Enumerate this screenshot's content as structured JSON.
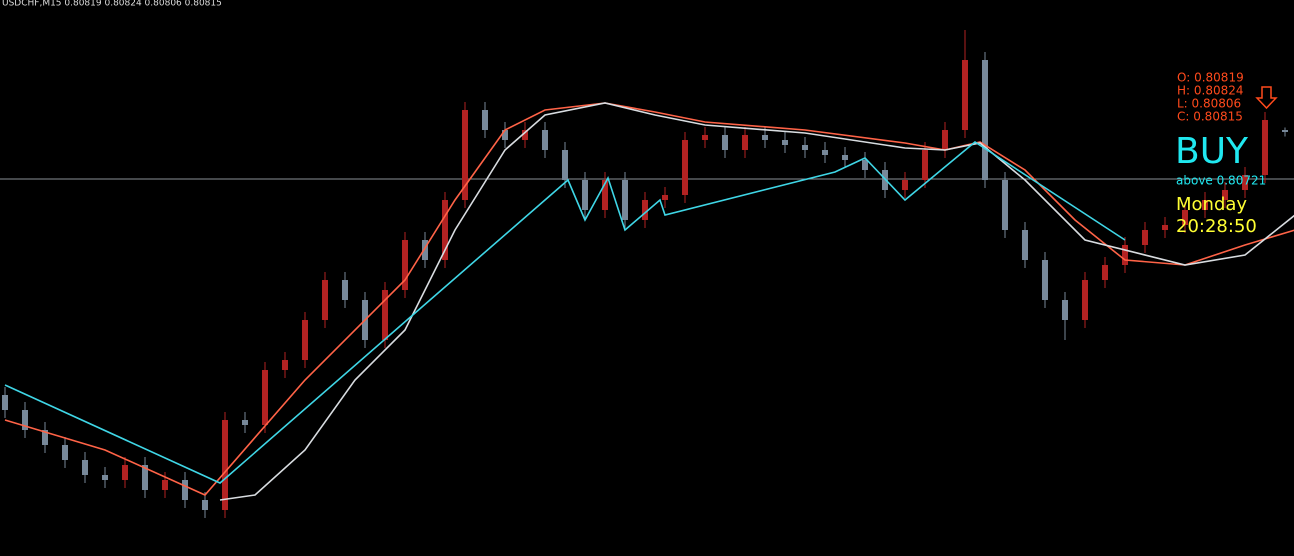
{
  "chart_data": {
    "type": "candlestick",
    "header": "USDCHF,M15  0.80819 0.80824 0.80806 0.80815",
    "ylim": [
      0.79967,
      0.81079
    ],
    "bull_color": "#b22222",
    "bear_color": "#778899",
    "candles": [
      [
        0.80289,
        0.80305,
        0.80243,
        0.80259
      ],
      [
        0.80259,
        0.80275,
        0.80203,
        0.80219
      ],
      [
        0.80219,
        0.80235,
        0.80173,
        0.80189
      ],
      [
        0.80189,
        0.80205,
        0.80143,
        0.80159
      ],
      [
        0.80159,
        0.80175,
        0.80113,
        0.80129
      ],
      [
        0.80129,
        0.80145,
        0.80103,
        0.80119
      ],
      [
        0.80119,
        0.80165,
        0.80103,
        0.80149
      ],
      [
        0.80149,
        0.80165,
        0.80083,
        0.80099
      ],
      [
        0.80099,
        0.80135,
        0.80083,
        0.80119
      ],
      [
        0.80119,
        0.80135,
        0.80063,
        0.80079
      ],
      [
        0.80079,
        0.80095,
        0.80043,
        0.80059
      ],
      [
        0.80059,
        0.80255,
        0.80043,
        0.80239
      ],
      [
        0.80239,
        0.80255,
        0.80213,
        0.80229
      ],
      [
        0.80229,
        0.80355,
        0.80213,
        0.80339
      ],
      [
        0.80339,
        0.80375,
        0.80323,
        0.80359
      ],
      [
        0.80359,
        0.80455,
        0.80343,
        0.80439
      ],
      [
        0.80439,
        0.80535,
        0.80423,
        0.80519
      ],
      [
        0.80519,
        0.80535,
        0.80463,
        0.80479
      ],
      [
        0.80479,
        0.80495,
        0.80383,
        0.80399
      ],
      [
        0.80399,
        0.80515,
        0.80383,
        0.80499
      ],
      [
        0.80499,
        0.80615,
        0.80483,
        0.80599
      ],
      [
        0.80599,
        0.80615,
        0.80543,
        0.80559
      ],
      [
        0.80559,
        0.80695,
        0.80543,
        0.80679
      ],
      [
        0.80679,
        0.80875,
        0.80663,
        0.80859
      ],
      [
        0.80859,
        0.80875,
        0.80803,
        0.80819
      ],
      [
        0.80819,
        0.80835,
        0.80783,
        0.80799
      ],
      [
        0.80799,
        0.80835,
        0.80783,
        0.80819
      ],
      [
        0.80819,
        0.80835,
        0.80763,
        0.80779
      ],
      [
        0.80779,
        0.80795,
        0.80703,
        0.80719
      ],
      [
        0.80719,
        0.80735,
        0.80643,
        0.80659
      ],
      [
        0.80659,
        0.80735,
        0.80643,
        0.80719
      ],
      [
        0.80719,
        0.80735,
        0.80623,
        0.80639
      ],
      [
        0.80639,
        0.80695,
        0.80623,
        0.80679
      ],
      [
        0.80679,
        0.80705,
        0.80663,
        0.80689
      ],
      [
        0.80689,
        0.80815,
        0.80673,
        0.80799
      ],
      [
        0.80799,
        0.80825,
        0.80783,
        0.80809
      ],
      [
        0.80809,
        0.80825,
        0.80763,
        0.80779
      ],
      [
        0.80779,
        0.80825,
        0.80763,
        0.80809
      ],
      [
        0.80809,
        0.80825,
        0.80783,
        0.80799
      ],
      [
        0.80799,
        0.80815,
        0.80773,
        0.80789
      ],
      [
        0.80789,
        0.80805,
        0.80763,
        0.80779
      ],
      [
        0.80779,
        0.80795,
        0.80753,
        0.80769
      ],
      [
        0.80769,
        0.80785,
        0.80743,
        0.80759
      ],
      [
        0.80759,
        0.80775,
        0.80723,
        0.80739
      ],
      [
        0.80739,
        0.80755,
        0.80683,
        0.80699
      ],
      [
        0.80699,
        0.80735,
        0.80683,
        0.80719
      ],
      [
        0.80719,
        0.80795,
        0.80703,
        0.80779
      ],
      [
        0.80779,
        0.80835,
        0.80763,
        0.80819
      ],
      [
        0.80819,
        0.81019,
        0.80803,
        0.80959
      ],
      [
        0.80959,
        0.80975,
        0.80703,
        0.80719
      ],
      [
        0.80719,
        0.80735,
        0.80603,
        0.80619
      ],
      [
        0.80619,
        0.80635,
        0.80543,
        0.80559
      ],
      [
        0.80559,
        0.80575,
        0.80463,
        0.80479
      ],
      [
        0.80479,
        0.80495,
        0.80399,
        0.80439
      ],
      [
        0.80439,
        0.80535,
        0.80423,
        0.80519
      ],
      [
        0.80519,
        0.80565,
        0.80503,
        0.80549
      ],
      [
        0.80549,
        0.80605,
        0.80533,
        0.80589
      ],
      [
        0.80589,
        0.80635,
        0.80573,
        0.80619
      ],
      [
        0.80619,
        0.80645,
        0.80603,
        0.80629
      ],
      [
        0.80629,
        0.80675,
        0.80613,
        0.80659
      ],
      [
        0.80659,
        0.80695,
        0.80643,
        0.80679
      ],
      [
        0.80679,
        0.80715,
        0.80663,
        0.80699
      ],
      [
        0.80699,
        0.80745,
        0.80683,
        0.80729
      ],
      [
        0.80729,
        0.80855,
        0.80713,
        0.80839
      ],
      [
        0.80819,
        0.80824,
        0.80806,
        0.80815
      ]
    ],
    "lines": [
      {
        "color": "#ff6347",
        "x": [
          0,
          5,
          10,
          15,
          20,
          22.5,
          25,
          27,
          30,
          32.5,
          35,
          40,
          45,
          47,
          48.75,
          51,
          53.5,
          56,
          59,
          62,
          64.5
        ],
        "values": [
          0.80239,
          0.80179,
          0.80089,
          0.80319,
          0.80519,
          0.80679,
          0.80819,
          0.80859,
          0.80873,
          0.80855,
          0.80835,
          0.80819,
          0.80793,
          0.80779,
          0.80795,
          0.80739,
          0.80639,
          0.80559,
          0.80549,
          0.80589,
          0.80619
        ]
      },
      {
        "color": "#d8dce0",
        "x": [
          10.75,
          12.5,
          15,
          17.5,
          20,
          22.5,
          25,
          27,
          30,
          32.5,
          35,
          40,
          45,
          47,
          48.75,
          51,
          54,
          59,
          62,
          64.5
        ],
        "values": [
          0.80079,
          0.80089,
          0.80179,
          0.80319,
          0.80419,
          0.80619,
          0.80779,
          0.80849,
          0.80873,
          0.80849,
          0.80829,
          0.80813,
          0.80783,
          0.80779,
          0.80793,
          0.80719,
          0.80599,
          0.80549,
          0.80569,
          0.80649
        ]
      },
      {
        "color": "#3fd6e6",
        "x": [
          0,
          10.75,
          21.25,
          28.15,
          29,
          30.15,
          31,
          32.75,
          33,
          41.5,
          43,
          45,
          48.5,
          56
        ],
        "values": [
          0.80309,
          0.80113,
          0.80479,
          0.80719,
          0.80639,
          0.80723,
          0.80619,
          0.80679,
          0.80649,
          0.80735,
          0.80763,
          0.80679,
          0.80795,
          0.80599
        ]
      }
    ],
    "hline": 0.80721,
    "hline_color": "#8a8f96",
    "ohlc_labels": [
      "O: 0.80819",
      "H: 0.80824",
      "L: 0.80806",
      "C: 0.80815"
    ],
    "signal": "BUY",
    "signal_note": "above 0.80721",
    "day": "Monday",
    "time": "20:28:50"
  }
}
